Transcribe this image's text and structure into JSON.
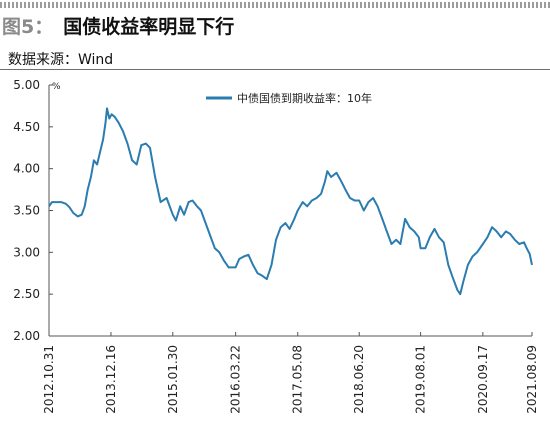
{
  "figure": {
    "label": "图5：",
    "title": "国债收益率明显下行",
    "source": "数据来源：Wind"
  },
  "colors": {
    "line": "#2b7cb0",
    "axis": "#555555",
    "text": "#222222",
    "background": "#ffffff"
  },
  "chart_data": {
    "type": "line",
    "title": "",
    "xlabel": "",
    "ylabel": "%",
    "ylim": [
      2.0,
      5.0
    ],
    "y_ticks": [
      "5.00",
      "4.50",
      "4.00",
      "3.50",
      "3.00",
      "2.50",
      "2.00"
    ],
    "x_ticks": [
      "2012.10.31",
      "2013.12.16",
      "2015.01.30",
      "2016.03.22",
      "2017.05.08",
      "2018.06.20",
      "2019.08.01",
      "2020.09.17",
      "2021.08.09"
    ],
    "grid": false,
    "legend_position": "top-center",
    "series": [
      {
        "name": "中债国债到期收益率：10年",
        "points": [
          [
            "2012-10-31",
            3.55
          ],
          [
            "2012-11-20",
            3.6
          ],
          [
            "2012-12-20",
            3.6
          ],
          [
            "2013-01-20",
            3.6
          ],
          [
            "2013-02-20",
            3.58
          ],
          [
            "2013-03-15",
            3.54
          ],
          [
            "2013-04-10",
            3.47
          ],
          [
            "2013-05-10",
            3.43
          ],
          [
            "2013-06-05",
            3.45
          ],
          [
            "2013-06-25",
            3.55
          ],
          [
            "2013-07-15",
            3.75
          ],
          [
            "2013-08-05",
            3.9
          ],
          [
            "2013-08-25",
            4.1
          ],
          [
            "2013-09-15",
            4.05
          ],
          [
            "2013-10-05",
            4.2
          ],
          [
            "2013-10-25",
            4.35
          ],
          [
            "2013-11-10",
            4.55
          ],
          [
            "2013-11-20",
            4.72
          ],
          [
            "2013-12-05",
            4.6
          ],
          [
            "2013-12-20",
            4.65
          ],
          [
            "2014-01-10",
            4.62
          ],
          [
            "2014-02-05",
            4.55
          ],
          [
            "2014-03-05",
            4.45
          ],
          [
            "2014-04-05",
            4.3
          ],
          [
            "2014-05-05",
            4.1
          ],
          [
            "2014-06-05",
            4.05
          ],
          [
            "2014-07-05",
            4.28
          ],
          [
            "2014-08-05",
            4.3
          ],
          [
            "2014-09-01",
            4.25
          ],
          [
            "2014-10-05",
            3.9
          ],
          [
            "2014-11-10",
            3.6
          ],
          [
            "2014-12-20",
            3.65
          ],
          [
            "2015-01-30",
            3.45
          ],
          [
            "2015-02-20",
            3.38
          ],
          [
            "2015-03-20",
            3.55
          ],
          [
            "2015-04-15",
            3.45
          ],
          [
            "2015-05-15",
            3.6
          ],
          [
            "2015-06-10",
            3.62
          ],
          [
            "2015-07-10",
            3.55
          ],
          [
            "2015-08-05",
            3.5
          ],
          [
            "2015-09-05",
            3.35
          ],
          [
            "2015-10-05",
            3.2
          ],
          [
            "2015-11-05",
            3.05
          ],
          [
            "2015-12-05",
            3.0
          ],
          [
            "2016-01-05",
            2.9
          ],
          [
            "2016-02-05",
            2.82
          ],
          [
            "2016-03-22",
            2.82
          ],
          [
            "2016-04-15",
            2.92
          ],
          [
            "2016-05-15",
            2.95
          ],
          [
            "2016-06-15",
            2.97
          ],
          [
            "2016-07-15",
            2.85
          ],
          [
            "2016-08-15",
            2.75
          ],
          [
            "2016-09-15",
            2.72
          ],
          [
            "2016-10-15",
            2.68
          ],
          [
            "2016-11-15",
            2.85
          ],
          [
            "2016-12-15",
            3.15
          ],
          [
            "2017-01-15",
            3.3
          ],
          [
            "2017-02-15",
            3.35
          ],
          [
            "2017-03-15",
            3.28
          ],
          [
            "2017-04-15",
            3.4
          ],
          [
            "2017-05-08",
            3.5
          ],
          [
            "2017-06-10",
            3.6
          ],
          [
            "2017-07-10",
            3.55
          ],
          [
            "2017-08-10",
            3.62
          ],
          [
            "2017-09-10",
            3.65
          ],
          [
            "2017-10-10",
            3.7
          ],
          [
            "2017-11-05",
            3.85
          ],
          [
            "2017-11-20",
            3.97
          ],
          [
            "2017-12-15",
            3.9
          ],
          [
            "2018-01-20",
            3.95
          ],
          [
            "2018-02-20",
            3.85
          ],
          [
            "2018-03-20",
            3.75
          ],
          [
            "2018-04-20",
            3.65
          ],
          [
            "2018-05-20",
            3.62
          ],
          [
            "2018-06-20",
            3.62
          ],
          [
            "2018-07-20",
            3.5
          ],
          [
            "2018-08-20",
            3.6
          ],
          [
            "2018-09-20",
            3.65
          ],
          [
            "2018-10-20",
            3.55
          ],
          [
            "2018-11-20",
            3.4
          ],
          [
            "2018-12-20",
            3.25
          ],
          [
            "2019-01-20",
            3.1
          ],
          [
            "2019-02-20",
            3.15
          ],
          [
            "2019-03-20",
            3.1
          ],
          [
            "2019-04-20",
            3.4
          ],
          [
            "2019-05-20",
            3.3
          ],
          [
            "2019-06-20",
            3.25
          ],
          [
            "2019-07-20",
            3.18
          ],
          [
            "2019-08-01",
            3.05
          ],
          [
            "2019-09-01",
            3.05
          ],
          [
            "2019-10-01",
            3.18
          ],
          [
            "2019-11-01",
            3.28
          ],
          [
            "2019-12-01",
            3.18
          ],
          [
            "2020-01-01",
            3.12
          ],
          [
            "2020-02-01",
            2.85
          ],
          [
            "2020-03-01",
            2.7
          ],
          [
            "2020-04-01",
            2.55
          ],
          [
            "2020-04-20",
            2.5
          ],
          [
            "2020-05-10",
            2.65
          ],
          [
            "2020-06-10",
            2.85
          ],
          [
            "2020-07-10",
            2.95
          ],
          [
            "2020-08-10",
            3.0
          ],
          [
            "2020-09-17",
            3.1
          ],
          [
            "2020-10-17",
            3.18
          ],
          [
            "2020-11-17",
            3.3
          ],
          [
            "2020-12-17",
            3.25
          ],
          [
            "2021-01-17",
            3.18
          ],
          [
            "2021-02-17",
            3.25
          ],
          [
            "2021-03-17",
            3.22
          ],
          [
            "2021-04-17",
            3.15
          ],
          [
            "2021-05-17",
            3.1
          ],
          [
            "2021-06-17",
            3.12
          ],
          [
            "2021-07-05",
            3.05
          ],
          [
            "2021-07-25",
            2.98
          ],
          [
            "2021-08-09",
            2.85
          ]
        ]
      }
    ]
  }
}
